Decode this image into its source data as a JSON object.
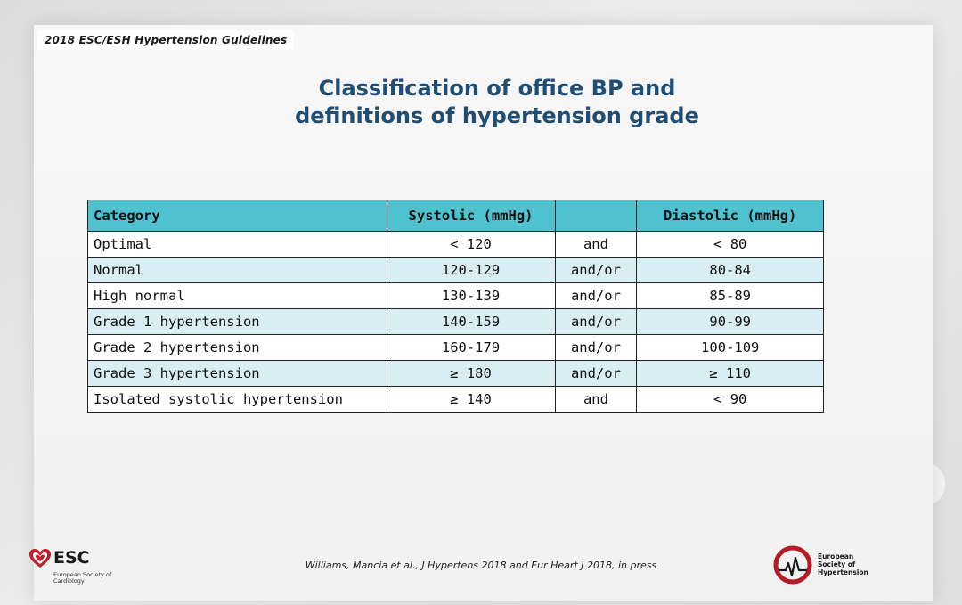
{
  "header": {
    "guideline_tag": "2018 ESC/ESH Hypertension Guidelines"
  },
  "title": {
    "line1": "Classification of office BP and",
    "line2": "definitions of hypertension grade"
  },
  "table": {
    "headers": {
      "category": "Category",
      "systolic": "Systolic (mmHg)",
      "conjunction": "",
      "diastolic": "Diastolic (mmHg)"
    },
    "rows": [
      {
        "category": "Optimal",
        "systolic": "< 120",
        "conjunction": "and",
        "diastolic": "< 80"
      },
      {
        "category": "Normal",
        "systolic": "120-129",
        "conjunction": "and/or",
        "diastolic": "80-84"
      },
      {
        "category": "High normal",
        "systolic": "130-139",
        "conjunction": "and/or",
        "diastolic": "85-89"
      },
      {
        "category": "Grade 1 hypertension",
        "systolic": "140-159",
        "conjunction": "and/or",
        "diastolic": "90-99"
      },
      {
        "category": "Grade 2 hypertension",
        "systolic": "160-179",
        "conjunction": "and/or",
        "diastolic": "100-109"
      },
      {
        "category": "Grade 3 hypertension",
        "systolic": "≥ 180",
        "conjunction": "and/or",
        "diastolic": "≥ 110"
      },
      {
        "category": "Isolated systolic hypertension",
        "systolic": "≥ 140",
        "conjunction": "and",
        "diastolic": "< 90"
      }
    ]
  },
  "citation": "Williams, Mancia et al., J Hypertens 2018 and Eur Heart J 2018, in press",
  "logos": {
    "esc": {
      "name": "ESC",
      "subtitle": "European Society of Cardiology",
      "icon": "heart-icon",
      "color": "#c0202b"
    },
    "esh": {
      "line1": "European",
      "line2": "Society of",
      "line3": "Hypertension",
      "icon": "esh-emblem-icon",
      "color": "#b31b25"
    }
  },
  "colors": {
    "title": "#1f4d73",
    "table_header": "#4fc2cf",
    "table_row_alt": "#d9eef2"
  }
}
